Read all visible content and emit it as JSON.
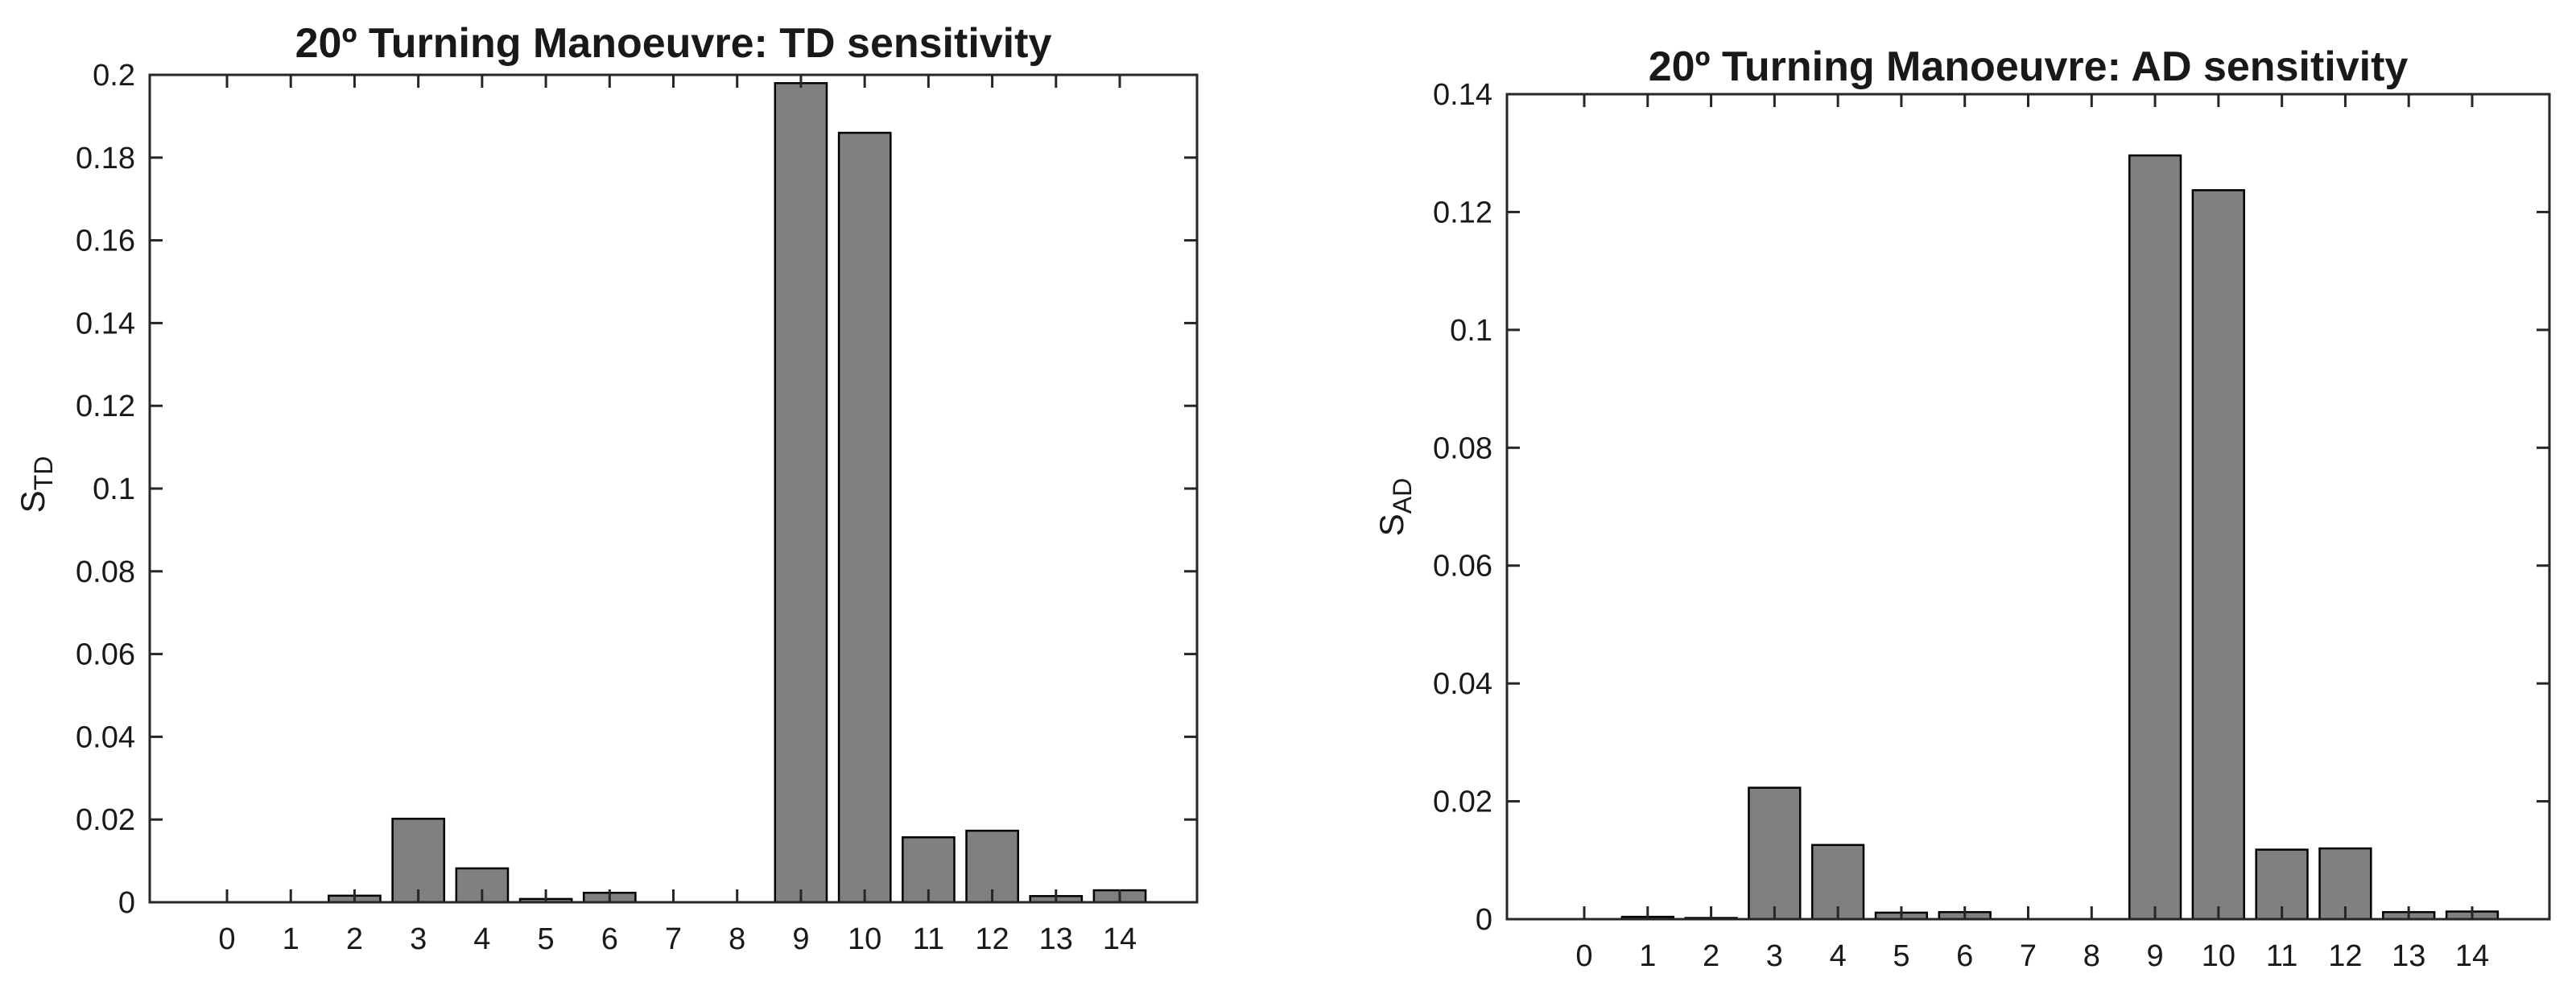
{
  "figure": {
    "background": "#ffffff",
    "text_color": "#191919",
    "axis_color": "#262626"
  },
  "chart_data": [
    {
      "type": "bar",
      "title": "20º Turning Manoeuvre: TD sensitivity",
      "ylabel": "S",
      "ylabel_sub": "TD",
      "xlabel": "",
      "categories": [
        "0",
        "1",
        "2",
        "3",
        "4",
        "5",
        "6",
        "7",
        "8",
        "9",
        "10",
        "11",
        "12",
        "13",
        "14"
      ],
      "values": [
        0,
        0,
        0.0016,
        0.0202,
        0.0082,
        0.0008,
        0.0023,
        0,
        0,
        0.198,
        0.186,
        0.0157,
        0.0173,
        0.0015,
        0.0029
      ],
      "ylim": [
        0,
        0.2
      ],
      "ytick_step": 0.02,
      "ytick_labels": [
        "0",
        "0.02",
        "0.04",
        "0.06",
        "0.08",
        "0.1",
        "0.12",
        "0.14",
        "0.16",
        "0.18",
        "0.2"
      ],
      "grid": false,
      "legend": null,
      "bar_color": "#808080",
      "bar_edge_color": "#000000"
    },
    {
      "type": "bar",
      "title": "20º Turning Manoeuvre: AD sensitivity",
      "ylabel": "S",
      "ylabel_sub": "AD",
      "xlabel": "",
      "categories": [
        "0",
        "1",
        "2",
        "3",
        "4",
        "5",
        "6",
        "7",
        "8",
        "9",
        "10",
        "11",
        "12",
        "13",
        "14"
      ],
      "values": [
        0,
        0.0004,
        0.0002,
        0.0223,
        0.0126,
        0.0011,
        0.0012,
        0,
        0,
        0.1296,
        0.1237,
        0.0118,
        0.012,
        0.0012,
        0.0013
      ],
      "ylim": [
        0,
        0.14
      ],
      "ytick_step": 0.02,
      "ytick_labels": [
        "0",
        "0.02",
        "0.04",
        "0.06",
        "0.08",
        "0.1",
        "0.12",
        "0.14"
      ],
      "grid": false,
      "legend": null,
      "bar_color": "#808080",
      "bar_edge_color": "#000000"
    }
  ]
}
